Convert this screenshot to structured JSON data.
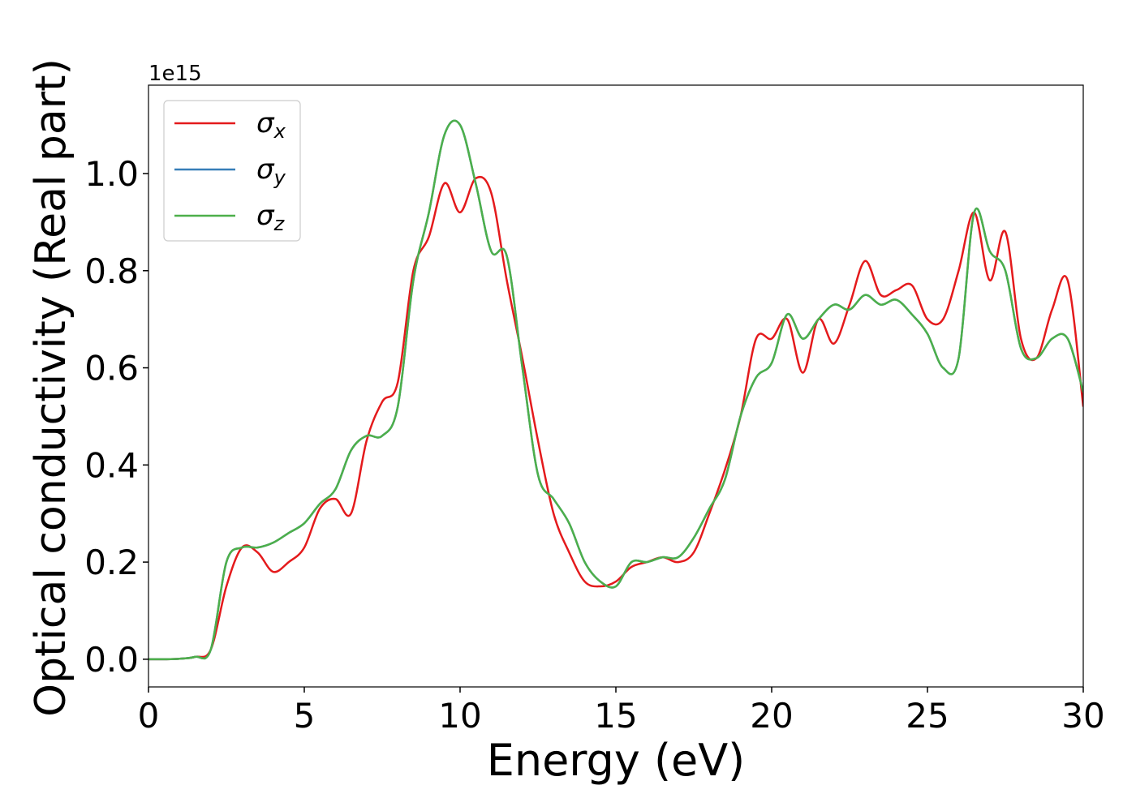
{
  "chart_data": {
    "type": "line",
    "xlabel": "Energy (eV)",
    "ylabel": "Optical conductivity (Real part)",
    "offset_text": "1e15",
    "x": [
      0,
      0.5,
      1,
      1.5,
      2,
      2.5,
      3,
      3.5,
      4,
      4.5,
      5,
      5.5,
      6,
      6.5,
      7,
      7.5,
      8,
      8.5,
      9,
      9.5,
      10,
      10.5,
      11,
      11.5,
      12,
      12.5,
      13,
      13.5,
      14,
      14.5,
      15,
      15.5,
      16,
      16.5,
      17,
      17.5,
      18,
      18.5,
      19,
      19.5,
      20,
      20.5,
      21,
      21.5,
      22,
      22.5,
      23,
      23.5,
      24,
      24.5,
      25,
      25.5,
      26,
      26.5,
      27,
      27.5,
      28,
      28.5,
      29,
      29.5,
      30
    ],
    "series": [
      {
        "name": "σx",
        "color": "#e41a1c",
        "values": [
          0,
          0,
          0.001,
          0.005,
          0.02,
          0.15,
          0.23,
          0.22,
          0.18,
          0.2,
          0.23,
          0.31,
          0.33,
          0.3,
          0.45,
          0.53,
          0.57,
          0.8,
          0.87,
          0.98,
          0.92,
          0.99,
          0.96,
          0.78,
          0.62,
          0.45,
          0.3,
          0.22,
          0.16,
          0.15,
          0.16,
          0.19,
          0.2,
          0.21,
          0.2,
          0.22,
          0.3,
          0.39,
          0.5,
          0.66,
          0.66,
          0.7,
          0.59,
          0.7,
          0.65,
          0.73,
          0.82,
          0.75,
          0.76,
          0.77,
          0.7,
          0.7,
          0.8,
          0.92,
          0.78,
          0.88,
          0.66,
          0.62,
          0.72,
          0.78,
          0.52
        ]
      },
      {
        "name": "σy",
        "color": "#377eb8",
        "values": [
          0,
          0,
          0.001,
          0.005,
          0.02,
          0.2,
          0.23,
          0.23,
          0.24,
          0.26,
          0.28,
          0.32,
          0.35,
          0.43,
          0.46,
          0.46,
          0.52,
          0.78,
          0.92,
          1.08,
          1.1,
          0.98,
          0.84,
          0.83,
          0.6,
          0.38,
          0.33,
          0.28,
          0.2,
          0.16,
          0.15,
          0.2,
          0.2,
          0.21,
          0.21,
          0.25,
          0.31,
          0.37,
          0.5,
          0.58,
          0.61,
          0.71,
          0.66,
          0.7,
          0.73,
          0.72,
          0.75,
          0.73,
          0.74,
          0.71,
          0.67,
          0.6,
          0.62,
          0.92,
          0.84,
          0.8,
          0.64,
          0.62,
          0.66,
          0.66,
          0.55
        ]
      },
      {
        "name": "σz",
        "color": "#4daf4a",
        "values": [
          0,
          0,
          0.001,
          0.005,
          0.02,
          0.2,
          0.23,
          0.23,
          0.24,
          0.26,
          0.28,
          0.32,
          0.35,
          0.43,
          0.46,
          0.46,
          0.52,
          0.78,
          0.92,
          1.08,
          1.1,
          0.98,
          0.84,
          0.83,
          0.6,
          0.38,
          0.33,
          0.28,
          0.2,
          0.16,
          0.15,
          0.2,
          0.2,
          0.21,
          0.21,
          0.25,
          0.31,
          0.37,
          0.5,
          0.58,
          0.61,
          0.71,
          0.66,
          0.7,
          0.73,
          0.72,
          0.75,
          0.73,
          0.74,
          0.71,
          0.67,
          0.6,
          0.62,
          0.92,
          0.84,
          0.8,
          0.64,
          0.62,
          0.66,
          0.66,
          0.55
        ]
      }
    ],
    "xlim": [
      0,
      30
    ],
    "xticks": [
      0,
      5,
      10,
      15,
      20,
      25,
      30
    ],
    "ylim": [
      -0.057,
      1.182
    ],
    "yticks": [
      {
        "value": 0,
        "label": "0.0"
      },
      0.2,
      0.4,
      0.6,
      0.8,
      {
        "value": 1,
        "label": "1.0"
      }
    ],
    "grid": false,
    "legend": "upper left"
  }
}
